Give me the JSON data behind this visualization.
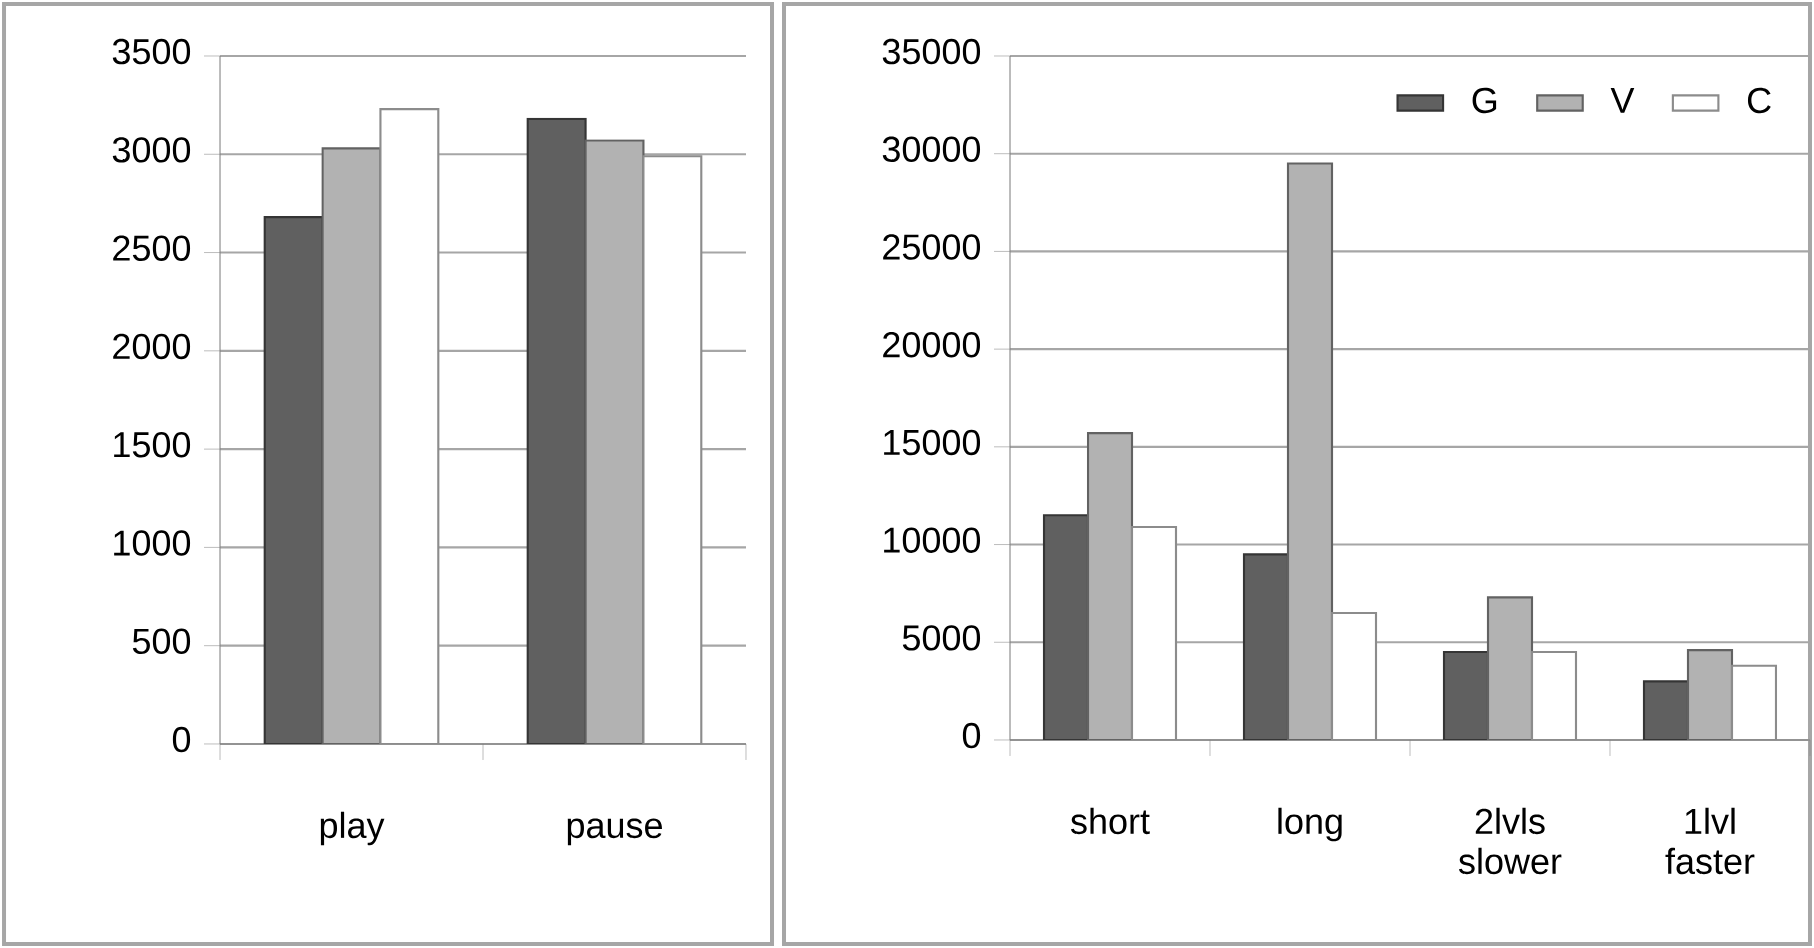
{
  "chart_data": [
    {
      "type": "bar",
      "categories": [
        "play",
        "pause"
      ],
      "series": [
        {
          "color": "#606060",
          "values": [
            2680,
            3180
          ]
        },
        {
          "color": "#b2b2b2",
          "values": [
            3030,
            3070
          ]
        },
        {
          "color": "#ffffff",
          "values": [
            3230,
            2990
          ]
        }
      ],
      "ylim": [
        0,
        3500
      ],
      "yticks": [
        0,
        500,
        1000,
        1500,
        2000,
        2500,
        3000,
        3500
      ],
      "grid": "y"
    },
    {
      "type": "bar",
      "categories": [
        "short",
        "long",
        "2lvls slower",
        "1lvl faster"
      ],
      "series": [
        {
          "name": "G",
          "color": "#606060",
          "values": [
            11500,
            9500,
            4500,
            3000
          ]
        },
        {
          "name": "V",
          "color": "#b2b2b2",
          "values": [
            15700,
            29500,
            7300,
            4600
          ]
        },
        {
          "name": "C",
          "color": "#ffffff",
          "values": [
            10900,
            6500,
            4500,
            3800
          ]
        }
      ],
      "ylim": [
        0,
        35000
      ],
      "yticks": [
        0,
        5000,
        10000,
        15000,
        20000,
        25000,
        30000,
        35000
      ],
      "grid": "y",
      "legend": "top right"
    }
  ]
}
